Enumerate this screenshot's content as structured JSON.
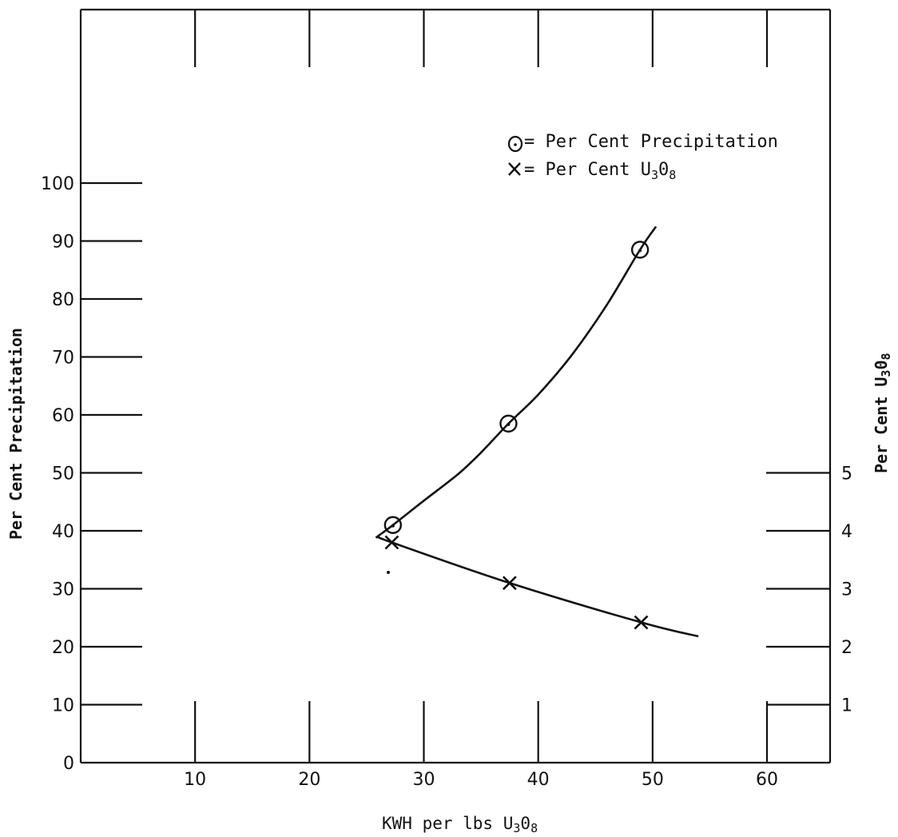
{
  "chart_data": {
    "type": "line",
    "x_axis": {
      "label_main": "KWH per lbs U",
      "label_sub1": "3",
      "label_mid": "0",
      "label_sub2": "8",
      "range": [
        0,
        65
      ],
      "ticks": [
        0,
        10,
        20,
        30,
        40,
        50,
        60
      ]
    },
    "y_left": {
      "label": "Per Cent Precipitation",
      "range": [
        0,
        100
      ],
      "ticks": [
        0,
        10,
        20,
        30,
        40,
        50,
        60,
        70,
        80,
        90,
        100
      ]
    },
    "y_right": {
      "label_main": "Per Cent U",
      "label_sub1": "3",
      "label_mid": "0",
      "label_sub2": "8",
      "range_note": "1 to 5, one unit = 10 left-axis units",
      "ticks": [
        1,
        2,
        3,
        4,
        5
      ]
    },
    "legend": {
      "placement": "top-right",
      "precip_label": "= Per Cent Precipitation",
      "u3o8_label_main": "= Per Cent U",
      "u3o8_label_sub1": "3",
      "u3o8_label_mid": "0",
      "u3o8_label_sub2": "8"
    },
    "series": [
      {
        "name": "Per Cent Precipitation",
        "axis": "left",
        "marker": "circle-dot",
        "points": [
          {
            "x": 27.3,
            "y": 41
          },
          {
            "x": 37.4,
            "y": 58.5
          },
          {
            "x": 48.9,
            "y": 88.5
          }
        ],
        "curve": [
          [
            25.8,
            38.8
          ],
          [
            27.3,
            41
          ],
          [
            30,
            45.2
          ],
          [
            33,
            49.8
          ],
          [
            35,
            53.5
          ],
          [
            37.4,
            58.5
          ],
          [
            40,
            63.5
          ],
          [
            43,
            70.5
          ],
          [
            46,
            79
          ],
          [
            48.9,
            88.5
          ],
          [
            50.3,
            92.5
          ]
        ]
      },
      {
        "name": "Per Cent U3O8",
        "axis": "right",
        "marker": "x",
        "points": [
          {
            "x": 27.2,
            "y": 3.8
          },
          {
            "x": 37.5,
            "y": 3.1
          },
          {
            "x": 49.0,
            "y": 2.42
          }
        ],
        "curve": [
          [
            26.0,
            3.9
          ],
          [
            27.2,
            3.8
          ],
          [
            37.5,
            3.1
          ],
          [
            49.0,
            2.42
          ],
          [
            54.0,
            2.18
          ]
        ]
      }
    ],
    "grid": "none"
  }
}
